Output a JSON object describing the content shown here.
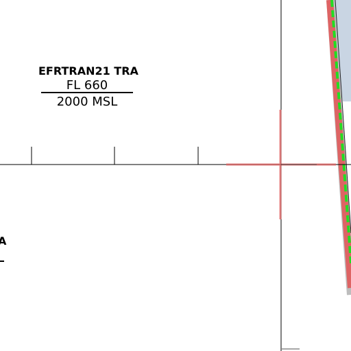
{
  "map": {
    "airspace_label": {
      "name": "EFRTRAN21 TRA",
      "upper_limit": "FL 660",
      "lower_limit": "2000 MSL"
    },
    "partial_label": {
      "name_fragment": "A"
    },
    "colors": {
      "background": "#ffffff",
      "linework": "#000000",
      "crosshair": "#e06060",
      "boundary_band": "#e25b5b",
      "boundary_dash": "#22dd22",
      "restricted_fill": "#c9d5e3"
    }
  }
}
